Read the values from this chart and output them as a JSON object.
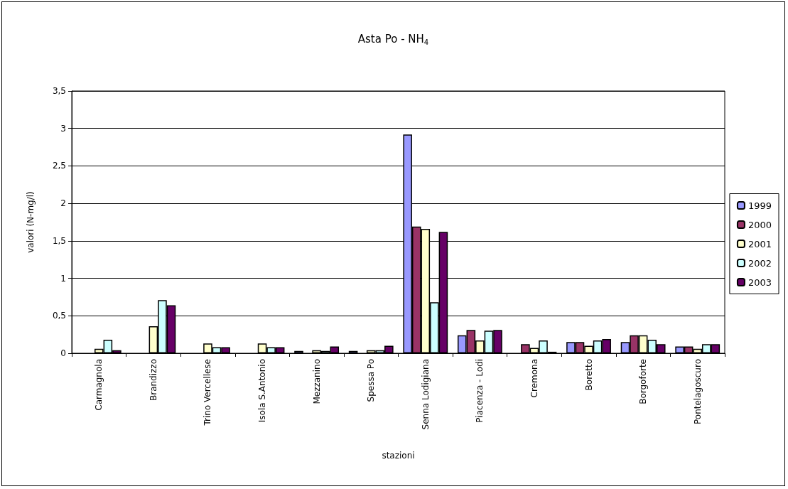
{
  "chart_data": {
    "type": "bar",
    "title": "Asta Po - NH$_{4}$",
    "xlabel": "stazioni",
    "ylabel": "valori (N-mg/l)",
    "categories": [
      "Carmagnola",
      "Brandizzo",
      "Trino Vercellese",
      "Isola S.Antonio",
      "Mezzanino",
      "Spessa Po",
      "Senna Lodigiana",
      "Piacenza - Lodi",
      "Cremona",
      "Boretto",
      "Borgoforte",
      "Pontelagoscuro"
    ],
    "series": [
      {
        "name": "1999",
        "color": "#9999ff",
        "values": [
          null,
          null,
          null,
          null,
          0.03,
          0.03,
          2.92,
          0.24,
          null,
          0.15,
          0.15,
          0.09
        ]
      },
      {
        "name": "2000",
        "color": "#993366",
        "values": [
          null,
          null,
          null,
          null,
          null,
          null,
          1.69,
          0.31,
          0.12,
          0.15,
          0.24,
          0.09
        ]
      },
      {
        "name": "2001",
        "color": "#ffffcc",
        "values": [
          0.06,
          0.36,
          0.13,
          0.13,
          0.04,
          0.04,
          1.66,
          0.17,
          0.07,
          0.1,
          0.24,
          0.06
        ]
      },
      {
        "name": "2002",
        "color": "#ccffff",
        "values": [
          0.18,
          0.71,
          0.08,
          0.08,
          0.03,
          0.04,
          0.68,
          0.3,
          0.17,
          0.17,
          0.18,
          0.12
        ]
      },
      {
        "name": "2003",
        "color": "#660066",
        "values": [
          0.04,
          0.64,
          0.08,
          0.08,
          0.09,
          0.1,
          1.62,
          0.31,
          0.02,
          0.19,
          0.12,
          0.12
        ]
      }
    ],
    "ylim": [
      0,
      3.5
    ],
    "yticks": [
      0,
      {
        "value": 0.5,
        "label": "0,5"
      },
      1,
      {
        "value": 1.5,
        "label": "1,5"
      },
      2,
      {
        "value": 2.5,
        "label": "2,5"
      },
      3,
      {
        "value": 3.5,
        "label": "3,5"
      }
    ],
    "grid": "y",
    "legend": "right"
  }
}
